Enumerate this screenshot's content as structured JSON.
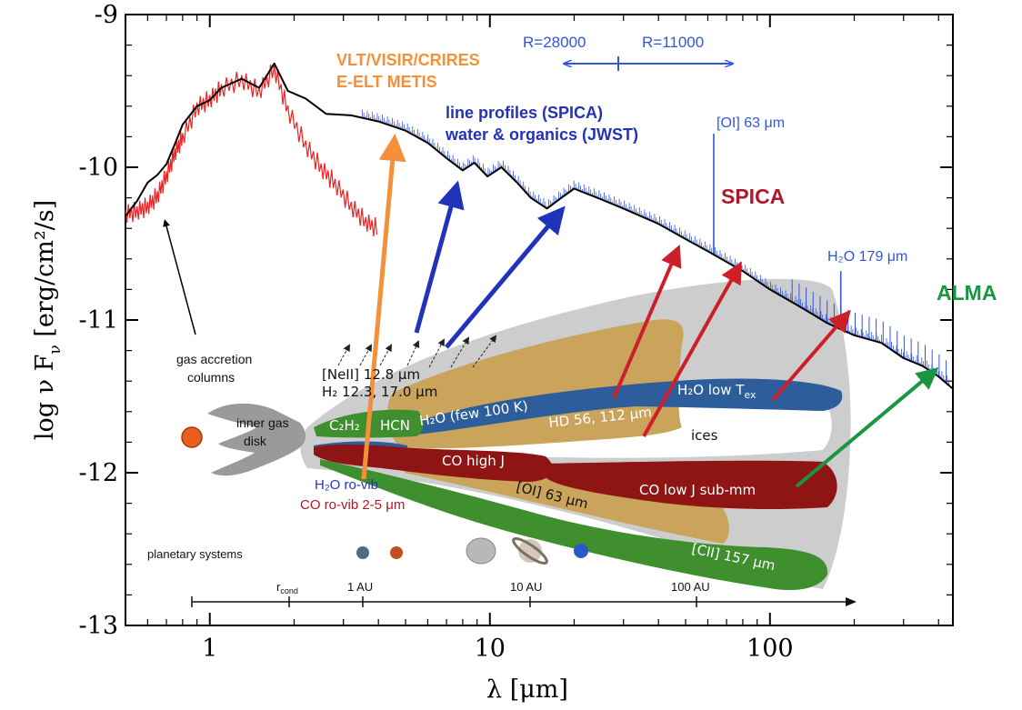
{
  "chart_data": {
    "type": "line",
    "xlabel": "λ [μm]",
    "ylabel": "log ν F",
    "ylabel_sub": "ν",
    "ylabel_unit": "[erg/cm²/s]",
    "xscale": "log",
    "xlim": [
      0.5,
      450
    ],
    "ylim": [
      -13,
      -9
    ],
    "x_ticks": [
      {
        "value": 1,
        "label": "1"
      },
      {
        "value": 10,
        "label": "10"
      },
      {
        "value": 100,
        "label": "100"
      }
    ],
    "y_ticks": [
      {
        "value": -9,
        "label": "-9"
      },
      {
        "value": -10,
        "label": "-10"
      },
      {
        "value": -11,
        "label": "-11"
      },
      {
        "value": -12,
        "label": "-12"
      },
      {
        "value": -13,
        "label": "-13"
      }
    ],
    "series": [
      {
        "color": "#000000",
        "x": [
          0.5,
          0.55,
          0.6,
          0.65,
          0.7,
          0.75,
          0.8,
          0.9,
          1.0,
          1.1,
          1.3,
          1.5,
          1.7,
          1.9,
          2.2,
          2.6,
          3.2,
          4.0,
          5.0,
          6.0,
          7.0,
          8.0,
          8.8,
          9.8,
          11,
          12.5,
          14,
          16,
          18,
          20,
          22,
          25,
          30,
          40,
          50,
          60,
          80,
          100,
          130,
          160,
          200,
          250,
          300,
          350,
          400,
          450
        ],
        "y": [
          -10.32,
          -10.22,
          -10.1,
          -10.05,
          -9.98,
          -9.85,
          -9.72,
          -9.6,
          -9.56,
          -9.48,
          -9.42,
          -9.48,
          -9.32,
          -9.5,
          -9.55,
          -9.65,
          -9.66,
          -9.7,
          -9.76,
          -9.84,
          -9.94,
          -10.02,
          -9.97,
          -10.06,
          -10.0,
          -10.1,
          -10.2,
          -10.27,
          -10.2,
          -10.14,
          -10.17,
          -10.21,
          -10.27,
          -10.37,
          -10.47,
          -10.55,
          -10.68,
          -10.8,
          -10.92,
          -11.02,
          -11.1,
          -11.15,
          -11.25,
          -11.3,
          -11.37,
          -11.45
        ]
      },
      {
        "color": "#ee2222",
        "x": [
          0.5,
          0.55,
          0.6,
          0.65,
          0.7,
          0.75,
          0.8,
          0.9,
          1.0,
          1.1,
          1.3,
          1.5,
          1.7,
          1.9,
          2.2,
          2.5,
          2.8,
          3.2,
          3.6,
          4.0
        ],
        "y": [
          -10.3,
          -10.28,
          -10.25,
          -10.18,
          -10.05,
          -9.9,
          -9.8,
          -9.6,
          -9.55,
          -9.48,
          -9.42,
          -9.5,
          -9.35,
          -9.62,
          -9.85,
          -10.0,
          -10.1,
          -10.25,
          -10.35,
          -10.4
        ]
      }
    ],
    "line_ticks": [
      {
        "x": 63,
        "y_top": -9.78,
        "color": "#3355dd"
      },
      {
        "x": 179,
        "y_top": -10.68,
        "color": "#3355dd"
      }
    ],
    "annotations": {
      "vlt_line1": "VLT/VISIR/CRIRES",
      "vlt_line2": "E-ELT METIS",
      "r1": "R=28000",
      "r2": "R=11000",
      "lp_line1": "line profiles (SPICA)",
      "lp_line2": "water & organics (JWST)",
      "oi63": "[OI] 63 μm",
      "spica": "SPICA",
      "h2o179": "H₂O 179 μm",
      "alma": "ALMA",
      "gas_acc_line1": "gas accretion",
      "gas_acc_line2": "columns",
      "inner_gas_line1": "inner gas",
      "inner_gas_line2": "disk",
      "neii": "[NeII] 12.8 μm",
      "h2": "H₂ 12.3, 17.0 μm",
      "c2h2": "C₂H₂",
      "hcn": "HCN",
      "h2o_few": "H₂O (few 100 K)",
      "h2o_low": "H₂O low T",
      "h2o_low_sub": "ex",
      "hd": "HD 56, 112 μm",
      "ices": "ices",
      "h2o_rovib": "H₂O ro-vib",
      "co_rovib": "CO ro-vib 2-5 μm",
      "co_high": "CO high J",
      "co_low": "CO low J sub-mm",
      "oi_band": "[OI] 63 μm",
      "cii_band": "[CII] 157 μm",
      "planetary": "planetary systems",
      "rcond": "r",
      "rcond_sub": "cond",
      "au1": "1 AU",
      "au10": "10 AU",
      "au100": "100 AU"
    },
    "colors": {
      "sed": "#000000",
      "star_spectrum": "#ee2222",
      "blue_lines": "#3355dd",
      "orange_arrow": "#f5903a",
      "blue_arrow": "#2233bb",
      "red_arrow": "#cc1f2a",
      "green_arrow": "#1a9640",
      "disk_gray": "#c4c4c4",
      "gold_band": "#c9a45a",
      "blue_band": "#2d5d9a",
      "green_band": "#3f8f2f",
      "darkred_band": "#8f1515"
    }
  }
}
